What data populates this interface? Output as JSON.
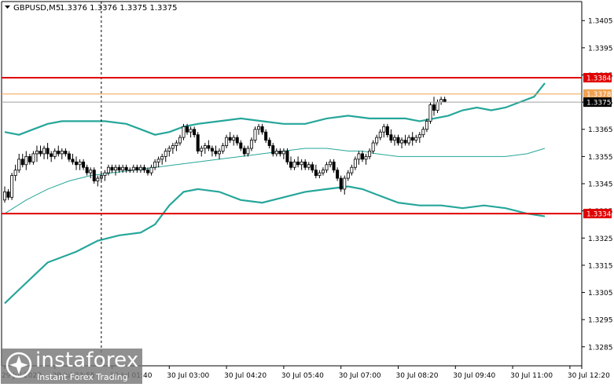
{
  "header": {
    "symbol": "GBPUSD,M5",
    "quote": "1.3376 1.3376 1.3375 1.3375"
  },
  "colors": {
    "background": "#ffffff",
    "candles": "#000000",
    "bollinger": "#26a69a",
    "levels": "#e00000",
    "ask_line": "#f0a050",
    "bid_line": "#a0a0a0",
    "crosshair": "#000000",
    "logo": "#7a7a7a"
  },
  "watermark": {
    "brand": "instaforex",
    "tagline": "Instant Forex Trading",
    "icon": "instaforex-logo-icon"
  },
  "chart_data": {
    "type": "candlestick",
    "symbol": "GBPUSD",
    "timeframe": "M5",
    "ylim": [
      1.3278,
      1.3412
    ],
    "y_ticks": [
      "1.3405",
      "1.3395",
      "1.3385",
      "1.3375",
      "1.3365",
      "1.3355",
      "1.3345",
      "1.3335",
      "1.3325",
      "1.3315",
      "1.3305",
      "1.3295",
      "1.3285"
    ],
    "x_ticks": [
      {
        "bar": 0,
        "label": "29 Jul 2020"
      },
      {
        "bar": 14,
        "label": "29 Jul 23:55"
      },
      {
        "bar": 30,
        "label": "30 Jul 01:40"
      },
      {
        "bar": 46,
        "label": "30 Jul 03:00"
      },
      {
        "bar": 62,
        "label": "30 Jul 04:20"
      },
      {
        "bar": 78,
        "label": "30 Jul 05:40"
      },
      {
        "bar": 94,
        "label": "30 Jul 07:00"
      },
      {
        "bar": 110,
        "label": "30 Jul 08:20"
      },
      {
        "bar": 126,
        "label": "30 Jul 09:40"
      },
      {
        "bar": 142,
        "label": "30 Jul 11:00"
      },
      {
        "bar": 158,
        "label": "30 Jul 12:20"
      }
    ],
    "crosshair_bar": 27,
    "levels": [
      {
        "price": 1.3384,
        "label": "1.3384"
      },
      {
        "price": 1.3334,
        "label": "1.3334"
      }
    ],
    "ask": {
      "price": 1.3378,
      "label": "1.3378"
    },
    "bid": {
      "price": 1.3375,
      "label": "1.3375"
    },
    "candles_ohlc": [
      [
        1.3339,
        1.3344,
        1.3338,
        1.3342
      ],
      [
        1.3342,
        1.3343,
        1.3339,
        1.334
      ],
      [
        1.334,
        1.3349,
        1.3339,
        1.3348
      ],
      [
        1.3348,
        1.3352,
        1.3346,
        1.335
      ],
      [
        1.335,
        1.3356,
        1.3349,
        1.3354
      ],
      [
        1.3354,
        1.3356,
        1.3351,
        1.3352
      ],
      [
        1.3352,
        1.3357,
        1.335,
        1.3355
      ],
      [
        1.3355,
        1.3356,
        1.3352,
        1.3353
      ],
      [
        1.3353,
        1.3357,
        1.3352,
        1.3356
      ],
      [
        1.3356,
        1.3359,
        1.3353,
        1.3357
      ],
      [
        1.3357,
        1.3359,
        1.3355,
        1.3356
      ],
      [
        1.3356,
        1.3359,
        1.3354,
        1.3358
      ],
      [
        1.3358,
        1.336,
        1.3354,
        1.3356
      ],
      [
        1.3356,
        1.3357,
        1.3353,
        1.3355
      ],
      [
        1.3355,
        1.3358,
        1.3354,
        1.3357
      ],
      [
        1.3357,
        1.3359,
        1.3355,
        1.3356
      ],
      [
        1.3356,
        1.3358,
        1.3354,
        1.3357
      ],
      [
        1.3357,
        1.3358,
        1.3355,
        1.3356
      ],
      [
        1.3356,
        1.3357,
        1.3353,
        1.3354
      ],
      [
        1.3354,
        1.3356,
        1.3352,
        1.3353
      ],
      [
        1.3353,
        1.3355,
        1.335,
        1.3352
      ],
      [
        1.3352,
        1.3354,
        1.335,
        1.3353
      ],
      [
        1.3353,
        1.3354,
        1.335,
        1.3351
      ],
      [
        1.3351,
        1.3352,
        1.3348,
        1.3349
      ],
      [
        1.3349,
        1.3351,
        1.3347,
        1.335
      ],
      [
        1.335,
        1.3351,
        1.3345,
        1.3346
      ],
      [
        1.3346,
        1.3348,
        1.3344,
        1.3347
      ],
      [
        1.3347,
        1.3349,
        1.3346,
        1.3348
      ],
      [
        1.3348,
        1.335,
        1.3346,
        1.3349
      ],
      [
        1.3349,
        1.3352,
        1.3348,
        1.3351
      ],
      [
        1.3351,
        1.3352,
        1.3349,
        1.335
      ],
      [
        1.335,
        1.3352,
        1.3348,
        1.3351
      ],
      [
        1.3351,
        1.3352,
        1.3349,
        1.335
      ],
      [
        1.335,
        1.3352,
        1.3349,
        1.3351
      ],
      [
        1.3351,
        1.3352,
        1.3349,
        1.335
      ],
      [
        1.335,
        1.3351,
        1.3349,
        1.335
      ],
      [
        1.335,
        1.3352,
        1.3349,
        1.3351
      ],
      [
        1.3351,
        1.3352,
        1.3349,
        1.335
      ],
      [
        1.335,
        1.3352,
        1.3349,
        1.3351
      ],
      [
        1.3351,
        1.3352,
        1.3349,
        1.335
      ],
      [
        1.335,
        1.3351,
        1.3348,
        1.3349
      ],
      [
        1.3349,
        1.3352,
        1.3348,
        1.3351
      ],
      [
        1.3351,
        1.3354,
        1.335,
        1.3353
      ],
      [
        1.3353,
        1.3355,
        1.3351,
        1.3354
      ],
      [
        1.3354,
        1.3356,
        1.3352,
        1.3355
      ],
      [
        1.3355,
        1.3358,
        1.3353,
        1.3357
      ],
      [
        1.3357,
        1.3359,
        1.3355,
        1.3358
      ],
      [
        1.3358,
        1.336,
        1.3356,
        1.3359
      ],
      [
        1.3359,
        1.3361,
        1.3357,
        1.336
      ],
      [
        1.336,
        1.3363,
        1.3359,
        1.3362
      ],
      [
        1.3362,
        1.3367,
        1.3361,
        1.3366
      ],
      [
        1.3366,
        1.3367,
        1.3363,
        1.3364
      ],
      [
        1.3364,
        1.3366,
        1.3362,
        1.3365
      ],
      [
        1.3365,
        1.3366,
        1.3362,
        1.3363
      ],
      [
        1.3363,
        1.3364,
        1.3356,
        1.3357
      ],
      [
        1.3357,
        1.3359,
        1.3355,
        1.3358
      ],
      [
        1.3358,
        1.336,
        1.3356,
        1.3359
      ],
      [
        1.3359,
        1.3361,
        1.3357,
        1.3358
      ],
      [
        1.3358,
        1.3359,
        1.3355,
        1.3357
      ],
      [
        1.3357,
        1.3359,
        1.3355,
        1.3356
      ],
      [
        1.3356,
        1.3358,
        1.3354,
        1.3357
      ],
      [
        1.3357,
        1.336,
        1.3356,
        1.3359
      ],
      [
        1.3359,
        1.3363,
        1.3358,
        1.3362
      ],
      [
        1.3362,
        1.3364,
        1.336,
        1.3361
      ],
      [
        1.3361,
        1.3363,
        1.3359,
        1.3362
      ],
      [
        1.3362,
        1.3363,
        1.3359,
        1.336
      ],
      [
        1.336,
        1.3361,
        1.3357,
        1.3358
      ],
      [
        1.3358,
        1.3359,
        1.3355,
        1.3356
      ],
      [
        1.3356,
        1.3359,
        1.3355,
        1.3358
      ],
      [
        1.3358,
        1.3362,
        1.3357,
        1.3361
      ],
      [
        1.3361,
        1.3366,
        1.336,
        1.3365
      ],
      [
        1.3365,
        1.3367,
        1.3363,
        1.3366
      ],
      [
        1.3366,
        1.3367,
        1.3363,
        1.3364
      ],
      [
        1.3364,
        1.3365,
        1.336,
        1.3361
      ],
      [
        1.3361,
        1.3362,
        1.3358,
        1.3359
      ],
      [
        1.3359,
        1.336,
        1.3355,
        1.3356
      ],
      [
        1.3356,
        1.3358,
        1.3355,
        1.3357
      ],
      [
        1.3357,
        1.3358,
        1.3355,
        1.3356
      ],
      [
        1.3356,
        1.3358,
        1.3354,
        1.3357
      ],
      [
        1.3357,
        1.3358,
        1.3352,
        1.3353
      ],
      [
        1.3353,
        1.3355,
        1.335,
        1.3351
      ],
      [
        1.3351,
        1.3354,
        1.335,
        1.3353
      ],
      [
        1.3353,
        1.3355,
        1.3351,
        1.3352
      ],
      [
        1.3352,
        1.3354,
        1.335,
        1.3353
      ],
      [
        1.3353,
        1.3354,
        1.335,
        1.3351
      ],
      [
        1.3351,
        1.3353,
        1.335,
        1.3352
      ],
      [
        1.3352,
        1.3353,
        1.3349,
        1.335
      ],
      [
        1.335,
        1.3352,
        1.3347,
        1.3348
      ],
      [
        1.3348,
        1.335,
        1.3347,
        1.3349
      ],
      [
        1.3349,
        1.3351,
        1.3348,
        1.335
      ],
      [
        1.335,
        1.3353,
        1.3349,
        1.3352
      ],
      [
        1.3352,
        1.3354,
        1.3351,
        1.3353
      ],
      [
        1.3353,
        1.3354,
        1.3349,
        1.335
      ],
      [
        1.335,
        1.3351,
        1.3346,
        1.3347
      ],
      [
        1.3347,
        1.3348,
        1.3342,
        1.3343
      ],
      [
        1.3343,
        1.3348,
        1.3341,
        1.3347
      ],
      [
        1.3347,
        1.335,
        1.3346,
        1.3349
      ],
      [
        1.3349,
        1.3352,
        1.3348,
        1.3351
      ],
      [
        1.3351,
        1.3355,
        1.335,
        1.3354
      ],
      [
        1.3354,
        1.3357,
        1.3352,
        1.3356
      ],
      [
        1.3356,
        1.3357,
        1.3353,
        1.3354
      ],
      [
        1.3354,
        1.3356,
        1.3352,
        1.3355
      ],
      [
        1.3355,
        1.3358,
        1.3354,
        1.3357
      ],
      [
        1.3357,
        1.3361,
        1.3356,
        1.336
      ],
      [
        1.336,
        1.3363,
        1.3359,
        1.3362
      ],
      [
        1.3362,
        1.3365,
        1.3361,
        1.3364
      ],
      [
        1.3364,
        1.3367,
        1.3362,
        1.3366
      ],
      [
        1.3366,
        1.3367,
        1.3362,
        1.3363
      ],
      [
        1.3363,
        1.3365,
        1.336,
        1.3361
      ],
      [
        1.3361,
        1.3363,
        1.3359,
        1.3362
      ],
      [
        1.3362,
        1.3363,
        1.3359,
        1.336
      ],
      [
        1.336,
        1.3362,
        1.3358,
        1.3361
      ],
      [
        1.3361,
        1.3363,
        1.3359,
        1.336
      ],
      [
        1.336,
        1.3363,
        1.3359,
        1.3362
      ],
      [
        1.3362,
        1.3364,
        1.3359,
        1.3361
      ],
      [
        1.3361,
        1.3363,
        1.336,
        1.3362
      ],
      [
        1.3362,
        1.3364,
        1.336,
        1.3363
      ],
      [
        1.3363,
        1.3366,
        1.3362,
        1.3365
      ],
      [
        1.3365,
        1.3369,
        1.3364,
        1.3368
      ],
      [
        1.3368,
        1.3375,
        1.3367,
        1.3374
      ],
      [
        1.3374,
        1.3377,
        1.337,
        1.3372
      ],
      [
        1.3372,
        1.3376,
        1.3371,
        1.3375
      ],
      [
        1.3375,
        1.3377,
        1.3374,
        1.3376
      ],
      [
        1.3376,
        1.3377,
        1.3375,
        1.3375
      ]
    ],
    "series": [
      {
        "values_ref": "bollinger_upper"
      },
      {
        "values_ref": "bollinger_middle"
      },
      {
        "values_ref": "bollinger_lower"
      }
    ],
    "bollinger_upper": [
      [
        0,
        1.3364
      ],
      [
        4,
        1.3363
      ],
      [
        8,
        1.3365
      ],
      [
        12,
        1.3367
      ],
      [
        16,
        1.3368
      ],
      [
        20,
        1.3368
      ],
      [
        28,
        1.3368
      ],
      [
        34,
        1.3367
      ],
      [
        38,
        1.3365
      ],
      [
        42,
        1.3363
      ],
      [
        46,
        1.3364
      ],
      [
        50,
        1.3366
      ],
      [
        54,
        1.3367
      ],
      [
        60,
        1.3368
      ],
      [
        66,
        1.3369
      ],
      [
        72,
        1.3368
      ],
      [
        78,
        1.3367
      ],
      [
        84,
        1.3367
      ],
      [
        90,
        1.3369
      ],
      [
        96,
        1.337
      ],
      [
        102,
        1.3369
      ],
      [
        108,
        1.3369
      ],
      [
        112,
        1.3369
      ],
      [
        116,
        1.3368
      ],
      [
        120,
        1.3369
      ],
      [
        124,
        1.337
      ],
      [
        128,
        1.3372
      ],
      [
        132,
        1.3373
      ],
      [
        136,
        1.3372
      ],
      [
        140,
        1.3373
      ],
      [
        144,
        1.3375
      ],
      [
        148,
        1.3377
      ],
      [
        151,
        1.3382
      ]
    ],
    "bollinger_middle": [
      [
        0,
        1.3334
      ],
      [
        6,
        1.3339
      ],
      [
        12,
        1.3343
      ],
      [
        18,
        1.3346
      ],
      [
        24,
        1.3348
      ],
      [
        30,
        1.3349
      ],
      [
        36,
        1.335
      ],
      [
        42,
        1.3351
      ],
      [
        48,
        1.3352
      ],
      [
        54,
        1.3353
      ],
      [
        60,
        1.3354
      ],
      [
        66,
        1.3355
      ],
      [
        72,
        1.3356
      ],
      [
        78,
        1.3357
      ],
      [
        84,
        1.3358
      ],
      [
        90,
        1.3358
      ],
      [
        96,
        1.3357
      ],
      [
        100,
        1.3357
      ],
      [
        104,
        1.3356
      ],
      [
        110,
        1.3355
      ],
      [
        116,
        1.3355
      ],
      [
        122,
        1.3355
      ],
      [
        128,
        1.3355
      ],
      [
        134,
        1.3355
      ],
      [
        140,
        1.3355
      ],
      [
        146,
        1.3356
      ],
      [
        151,
        1.3358
      ]
    ],
    "bollinger_lower": [
      [
        0,
        1.3301
      ],
      [
        4,
        1.3306
      ],
      [
        8,
        1.3311
      ],
      [
        12,
        1.3316
      ],
      [
        16,
        1.3318
      ],
      [
        20,
        1.332
      ],
      [
        26,
        1.3324
      ],
      [
        32,
        1.3326
      ],
      [
        38,
        1.3327
      ],
      [
        42,
        1.333
      ],
      [
        46,
        1.3337
      ],
      [
        50,
        1.3342
      ],
      [
        54,
        1.3343
      ],
      [
        60,
        1.3342
      ],
      [
        66,
        1.3339
      ],
      [
        72,
        1.3338
      ],
      [
        78,
        1.334
      ],
      [
        84,
        1.3342
      ],
      [
        90,
        1.3343
      ],
      [
        96,
        1.3344
      ],
      [
        100,
        1.3343
      ],
      [
        104,
        1.3341
      ],
      [
        110,
        1.3338
      ],
      [
        116,
        1.3337
      ],
      [
        122,
        1.3337
      ],
      [
        128,
        1.3336
      ],
      [
        134,
        1.3337
      ],
      [
        140,
        1.3336
      ],
      [
        146,
        1.3334
      ],
      [
        151,
        1.3333
      ]
    ]
  }
}
